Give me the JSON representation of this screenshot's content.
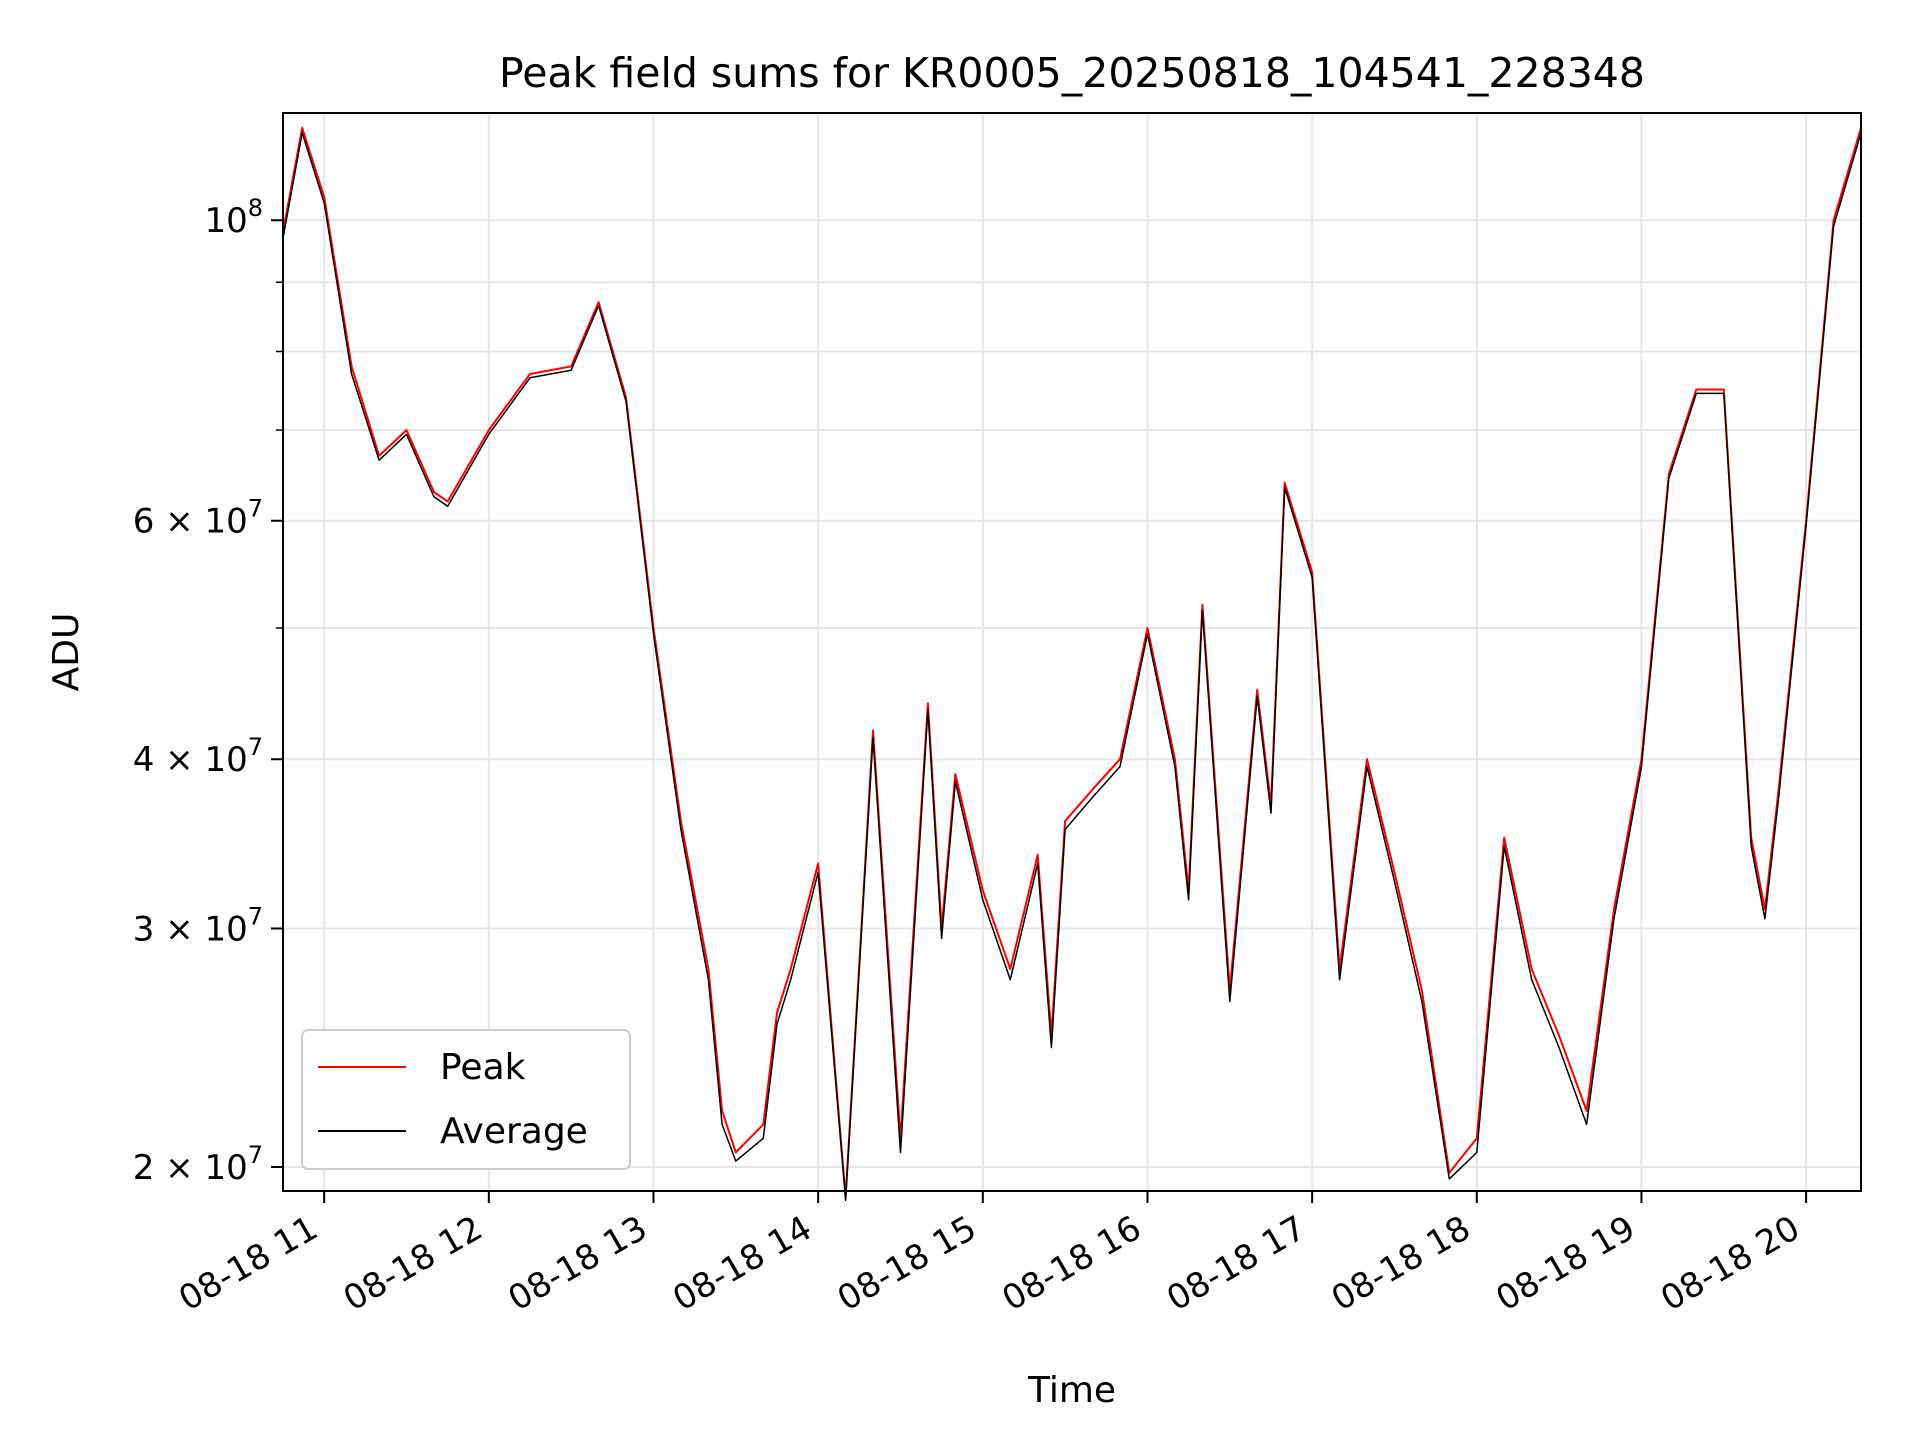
{
  "chart_data": {
    "type": "line",
    "title": "Peak field sums for KR0005_20250818_104541_228348",
    "xlabel": "Time",
    "ylabel": "ADU",
    "yscale": "log",
    "ylim": [
      19200000,
      120000000
    ],
    "xlim": [
      "08-18 10:45",
      "08-18 20:20"
    ],
    "grid": true,
    "legend": "lower-left",
    "x_ticks": [
      "08-18 11",
      "08-18 12",
      "08-18 13",
      "08-18 14",
      "08-18 15",
      "08-18 16",
      "08-18 17",
      "08-18 18",
      "08-18 19",
      "08-18 20"
    ],
    "y_ticks": [
      {
        "value": 20000000,
        "label": "2 × 10^7",
        "mant": "2 × 10",
        "exp": "7"
      },
      {
        "value": 30000000,
        "label": "3 × 10^7",
        "mant": "3 × 10",
        "exp": "7"
      },
      {
        "value": 40000000,
        "label": "4 × 10^7",
        "mant": "4 × 10",
        "exp": "7"
      },
      {
        "value": 60000000,
        "label": "6 × 10^7",
        "mant": "6 × 10",
        "exp": "7"
      },
      {
        "value": 100000000,
        "label": "10^8",
        "mant": "10",
        "exp": "8"
      }
    ],
    "minor_y_values": [
      50000000,
      70000000,
      80000000,
      90000000
    ],
    "x": [
      "10:45",
      "10:52",
      "11:00",
      "11:10",
      "11:20",
      "11:30",
      "11:40",
      "11:45",
      "12:00",
      "12:15",
      "12:30",
      "12:40",
      "12:50",
      "13:00",
      "13:10",
      "13:20",
      "13:25",
      "13:30",
      "13:40",
      "13:45",
      "13:50",
      "14:00",
      "14:10",
      "14:20",
      "14:30",
      "14:40",
      "14:45",
      "14:50",
      "15:00",
      "15:10",
      "15:20",
      "15:25",
      "15:30",
      "15:40",
      "15:50",
      "16:00",
      "16:10",
      "16:15",
      "16:20",
      "16:30",
      "16:40",
      "16:45",
      "16:50",
      "17:00",
      "17:10",
      "17:20",
      "17:30",
      "17:40",
      "17:50",
      "18:00",
      "18:10",
      "18:20",
      "18:30",
      "18:40",
      "18:50",
      "19:00",
      "19:10",
      "19:20",
      "19:30",
      "19:40",
      "19:45",
      "19:50",
      "20:00",
      "20:10",
      "20:20"
    ],
    "series": [
      {
        "name": "Peak",
        "color": "#ff0000",
        "values": [
          98000000,
          117000000,
          104000000,
          78000000,
          67000000,
          70000000,
          63000000,
          62000000,
          70000000,
          77000000,
          78000000,
          87000000,
          74000000,
          50000000,
          36000000,
          28000000,
          22000000,
          20500000,
          21500000,
          26000000,
          28000000,
          33500000,
          19000000,
          42000000,
          21000000,
          44000000,
          30000000,
          39000000,
          32000000,
          28000000,
          34000000,
          25000000,
          36000000,
          38000000,
          40000000,
          50000000,
          40000000,
          32000000,
          52000000,
          27000000,
          45000000,
          37000000,
          64000000,
          55000000,
          28000000,
          40000000,
          33000000,
          27000000,
          19800000,
          21000000,
          35000000,
          28000000,
          25000000,
          22000000,
          31000000,
          40000000,
          65000000,
          75000000,
          75000000,
          35000000,
          31000000,
          38000000,
          60000000,
          100000000,
          117000000
        ]
      },
      {
        "name": "Average",
        "color": "#000000",
        "values": [
          97000000,
          116000000,
          103000000,
          77000000,
          66500000,
          69500000,
          62500000,
          61500000,
          69500000,
          76500000,
          77500000,
          86500000,
          73500000,
          49500000,
          35500000,
          27500000,
          21500000,
          20200000,
          21000000,
          25500000,
          27500000,
          33000000,
          18900000,
          41500000,
          20500000,
          43500000,
          29500000,
          38500000,
          31500000,
          27500000,
          33500000,
          24500000,
          35500000,
          37500000,
          39500000,
          49500000,
          39500000,
          31500000,
          51500000,
          26500000,
          44500000,
          36500000,
          63500000,
          54500000,
          27500000,
          39500000,
          32500000,
          26500000,
          19600000,
          20500000,
          34500000,
          27500000,
          24500000,
          21500000,
          30500000,
          39500000,
          64500000,
          74500000,
          74500000,
          34500000,
          30500000,
          37500000,
          59500000,
          99000000,
          116000000
        ]
      }
    ]
  }
}
